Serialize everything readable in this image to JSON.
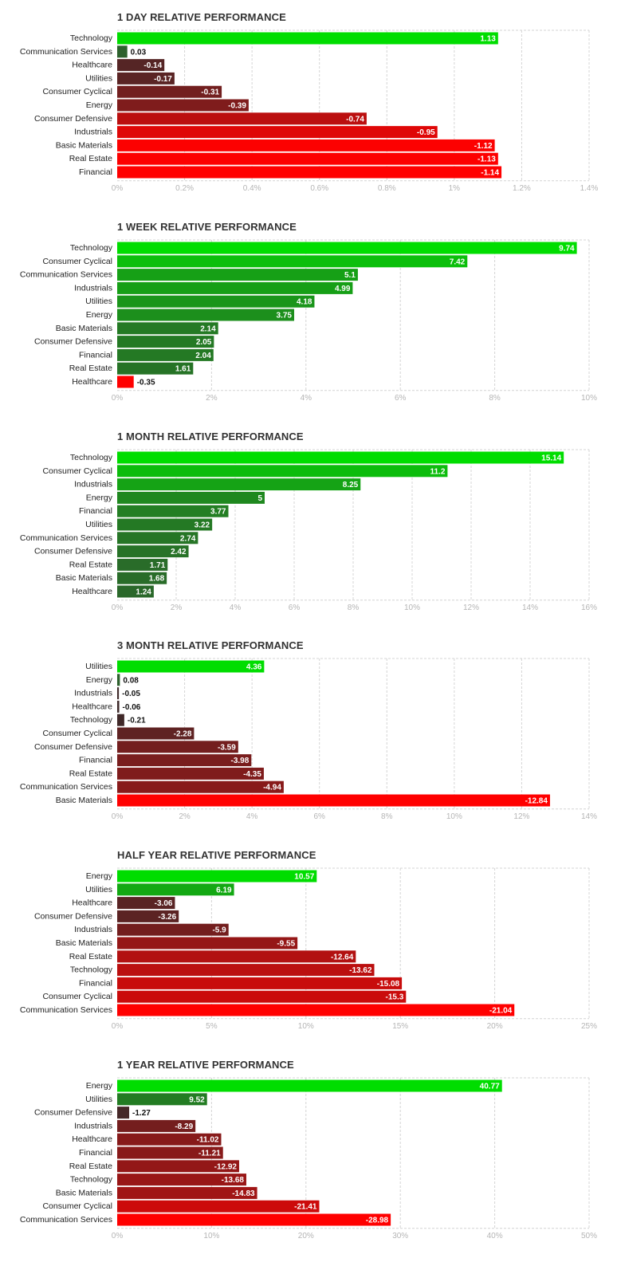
{
  "chart_data": [
    {
      "type": "bar",
      "orientation": "horizontal",
      "title": "1 DAY RELATIVE PERFORMANCE",
      "categories": [
        "Technology",
        "Communication Services",
        "Healthcare",
        "Utilities",
        "Consumer Cyclical",
        "Energy",
        "Consumer Defensive",
        "Industrials",
        "Basic Materials",
        "Real Estate",
        "Financial"
      ],
      "values": [
        1.13,
        0.03,
        -0.14,
        -0.17,
        -0.31,
        -0.39,
        -0.74,
        -0.95,
        -1.12,
        -1.13,
        -1.14
      ],
      "value_labels": [
        "1.13",
        "0.03",
        "-0.14",
        "-0.17",
        "-0.31",
        "-0.39",
        "-0.74",
        "-0.95",
        "-1.12",
        "-1.13",
        "-1.14"
      ],
      "xlim": [
        0,
        1.4
      ],
      "xticks": [
        0,
        0.2,
        0.4,
        0.6,
        0.8,
        1,
        1.2,
        1.4
      ],
      "xtick_labels": [
        "0%",
        "0.2%",
        "0.4%",
        "0.6%",
        "0.8%",
        "1%",
        "1.2%",
        "1.4%"
      ],
      "bar_length": "absolute value",
      "xlabel": "",
      "ylabel": "",
      "grid": true
    },
    {
      "type": "bar",
      "orientation": "horizontal",
      "title": "1 WEEK RELATIVE PERFORMANCE",
      "categories": [
        "Technology",
        "Consumer Cyclical",
        "Communication Services",
        "Industrials",
        "Utilities",
        "Energy",
        "Basic Materials",
        "Consumer Defensive",
        "Financial",
        "Real Estate",
        "Healthcare"
      ],
      "values": [
        9.74,
        7.42,
        5.1,
        4.99,
        4.18,
        3.75,
        2.14,
        2.05,
        2.04,
        1.61,
        -0.35
      ],
      "value_labels": [
        "9.74",
        "7.42",
        "5.1",
        "4.99",
        "4.18",
        "3.75",
        "2.14",
        "2.05",
        "2.04",
        "1.61",
        "-0.35"
      ],
      "xlim": [
        0,
        10
      ],
      "xticks": [
        0,
        2,
        4,
        6,
        8,
        10
      ],
      "xtick_labels": [
        "0%",
        "2%",
        "4%",
        "6%",
        "8%",
        "10%"
      ],
      "bar_length": "absolute value",
      "xlabel": "",
      "ylabel": "",
      "grid": true
    },
    {
      "type": "bar",
      "orientation": "horizontal",
      "title": "1 MONTH RELATIVE PERFORMANCE",
      "categories": [
        "Technology",
        "Consumer Cyclical",
        "Industrials",
        "Energy",
        "Financial",
        "Utilities",
        "Communication Services",
        "Consumer Defensive",
        "Real Estate",
        "Basic Materials",
        "Healthcare"
      ],
      "values": [
        15.14,
        11.2,
        8.25,
        5,
        3.77,
        3.22,
        2.74,
        2.42,
        1.71,
        1.68,
        1.24
      ],
      "value_labels": [
        "15.14",
        "11.2",
        "8.25",
        "5",
        "3.77",
        "3.22",
        "2.74",
        "2.42",
        "1.71",
        "1.68",
        "1.24"
      ],
      "xlim": [
        0,
        16
      ],
      "xticks": [
        0,
        2,
        4,
        6,
        8,
        10,
        12,
        14,
        16
      ],
      "xtick_labels": [
        "0%",
        "2%",
        "4%",
        "6%",
        "8%",
        "10%",
        "12%",
        "14%",
        "16%"
      ],
      "bar_length": "absolute value",
      "xlabel": "",
      "ylabel": "",
      "grid": true
    },
    {
      "type": "bar",
      "orientation": "horizontal",
      "title": "3 MONTH RELATIVE PERFORMANCE",
      "categories": [
        "Utilities",
        "Energy",
        "Industrials",
        "Healthcare",
        "Technology",
        "Consumer Cyclical",
        "Consumer Defensive",
        "Financial",
        "Real Estate",
        "Communication Services",
        "Basic Materials"
      ],
      "values": [
        4.36,
        0.08,
        -0.05,
        -0.06,
        -0.21,
        -2.28,
        -3.59,
        -3.98,
        -4.35,
        -4.94,
        -12.84
      ],
      "value_labels": [
        "4.36",
        "0.08",
        "-0.05",
        "-0.06",
        "-0.21",
        "-2.28",
        "-3.59",
        "-3.98",
        "-4.35",
        "-4.94",
        "-12.84"
      ],
      "xlim": [
        0,
        14
      ],
      "xticks": [
        0,
        2,
        4,
        6,
        8,
        10,
        12,
        14
      ],
      "xtick_labels": [
        "0%",
        "2%",
        "4%",
        "6%",
        "8%",
        "10%",
        "12%",
        "14%"
      ],
      "bar_length": "absolute value",
      "xlabel": "",
      "ylabel": "",
      "grid": true
    },
    {
      "type": "bar",
      "orientation": "horizontal",
      "title": "HALF YEAR RELATIVE PERFORMANCE",
      "categories": [
        "Energy",
        "Utilities",
        "Healthcare",
        "Consumer Defensive",
        "Industrials",
        "Basic Materials",
        "Real Estate",
        "Technology",
        "Financial",
        "Consumer Cyclical",
        "Communication Services"
      ],
      "values": [
        10.57,
        6.19,
        -3.06,
        -3.26,
        -5.9,
        -9.55,
        -12.64,
        -13.62,
        -15.08,
        -15.3,
        -21.04
      ],
      "value_labels": [
        "10.57",
        "6.19",
        "-3.06",
        "-3.26",
        "-5.9",
        "-9.55",
        "-12.64",
        "-13.62",
        "-15.08",
        "-15.3",
        "-21.04"
      ],
      "xlim": [
        0,
        25
      ],
      "xticks": [
        0,
        5,
        10,
        15,
        20,
        25
      ],
      "xtick_labels": [
        "0%",
        "5%",
        "10%",
        "15%",
        "20%",
        "25%"
      ],
      "bar_length": "absolute value",
      "xlabel": "",
      "ylabel": "",
      "grid": true
    },
    {
      "type": "bar",
      "orientation": "horizontal",
      "title": "1 YEAR RELATIVE PERFORMANCE",
      "categories": [
        "Energy",
        "Utilities",
        "Consumer Defensive",
        "Industrials",
        "Healthcare",
        "Financial",
        "Real Estate",
        "Technology",
        "Basic Materials",
        "Consumer Cyclical",
        "Communication Services"
      ],
      "values": [
        40.77,
        9.52,
        -1.27,
        -8.29,
        -11.02,
        -11.21,
        -12.92,
        -13.68,
        -14.83,
        -21.41,
        -28.98
      ],
      "value_labels": [
        "40.77",
        "9.52",
        "-1.27",
        "-8.29",
        "-11.02",
        "-11.21",
        "-12.92",
        "-13.68",
        "-14.83",
        "-21.41",
        "-28.98"
      ],
      "xlim": [
        0,
        50
      ],
      "xticks": [
        0,
        10,
        20,
        30,
        40,
        50
      ],
      "xtick_labels": [
        "0%",
        "10%",
        "20%",
        "30%",
        "40%",
        "50%"
      ],
      "bar_length": "absolute value",
      "xlabel": "",
      "ylabel": "",
      "grid": true
    }
  ],
  "colors": {
    "positive_strong": "#00dd00",
    "positive_weak": "#2e5e2e",
    "negative_weak": "#3d2a2a",
    "negative_strong": "#ff0000",
    "grid": "#d4d4d4",
    "tick_label": "#b5b5b5",
    "category_label": "#222222",
    "title": "#333333"
  }
}
